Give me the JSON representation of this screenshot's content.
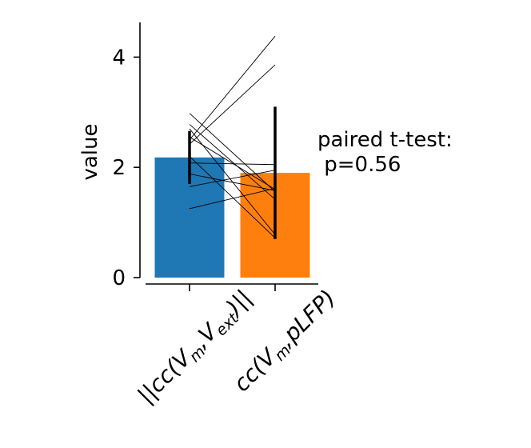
{
  "chart_data": {
    "type": "bar",
    "categories": [
      "||cc(V_m,V_ext)||",
      "cc(V_m,pLFP)"
    ],
    "category_labels": [
      {
        "prefix": "||cc(V",
        "sub1": "m",
        "mid": ",V",
        "sub2": "ext",
        "suffix": ")||"
      },
      {
        "prefix": "cc(V",
        "sub1": "m",
        "mid": ",pLFP",
        "sub2": "",
        "suffix": ")"
      }
    ],
    "values": [
      2.18,
      1.9
    ],
    "errors": [
      0.48,
      1.2
    ],
    "bar_colors": [
      "#1f77b4",
      "#ff7f0e"
    ],
    "paired_points": [
      [
        2.98,
        1.56
      ],
      [
        2.78,
        1.42
      ],
      [
        2.7,
        0.78
      ],
      [
        2.55,
        1.6
      ],
      [
        2.5,
        4.38
      ],
      [
        2.42,
        3.86
      ],
      [
        2.2,
        0.72
      ],
      [
        2.08,
        2.05
      ],
      [
        1.88,
        1.58
      ],
      [
        1.65,
        1.95
      ],
      [
        1.25,
        1.62
      ]
    ],
    "ylabel": "value",
    "xlabel": "",
    "ylim": [
      0,
      4.65
    ],
    "yticks": [
      0,
      2,
      4
    ],
    "annotation": [
      "paired t-test:",
      " p=0.56"
    ],
    "grid": false
  }
}
